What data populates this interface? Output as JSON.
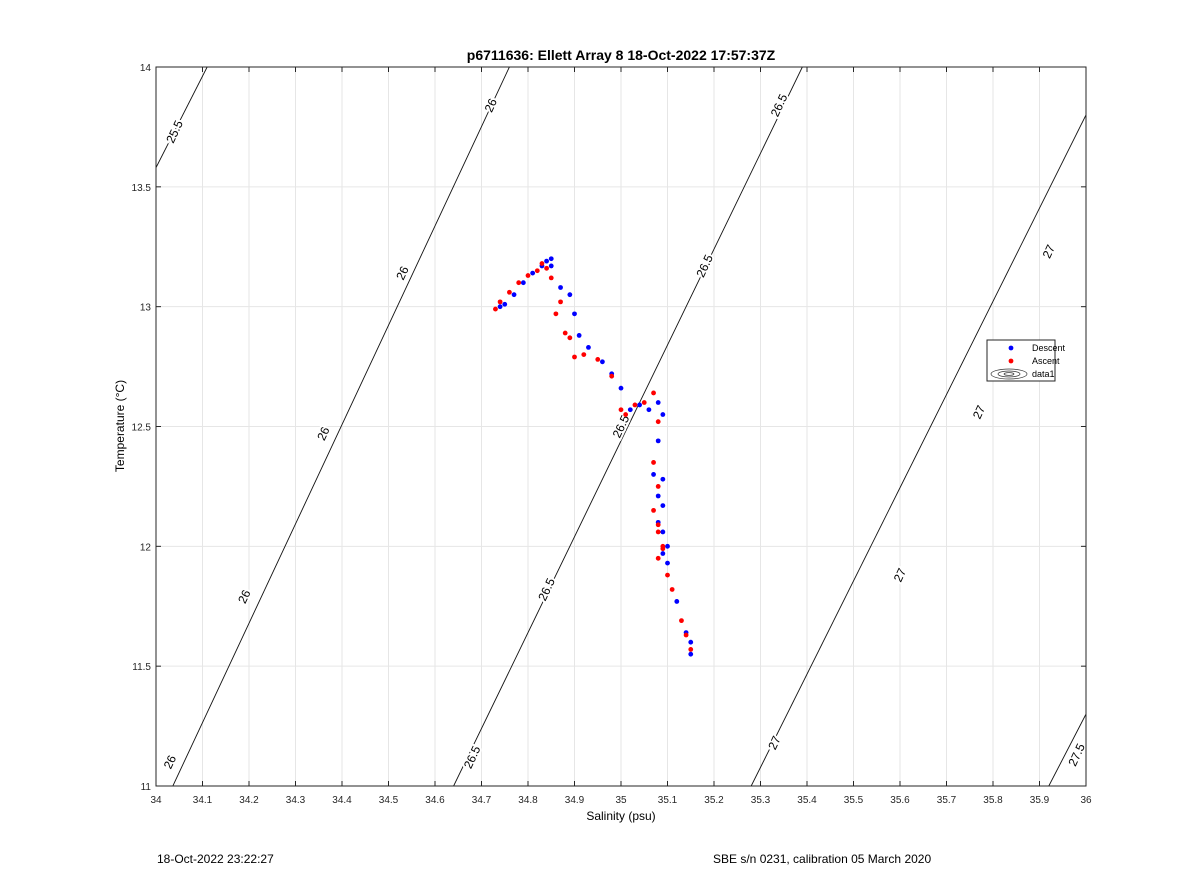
{
  "chart_data": {
    "type": "scatter",
    "title": "p6711636: Ellett Array 8 18-Oct-2022 17:57:37Z",
    "xlabel": "Salinity (psu)",
    "ylabel": "Temperature (°C)",
    "xlim": [
      34,
      36
    ],
    "ylim": [
      11,
      14
    ],
    "xticks": [
      "34",
      "34.1",
      "34.2",
      "34.3",
      "34.4",
      "34.5",
      "34.6",
      "34.7",
      "34.8",
      "34.9",
      "35",
      "35.1",
      "35.2",
      "35.3",
      "35.4",
      "35.5",
      "35.6",
      "35.7",
      "35.8",
      "35.9",
      "36"
    ],
    "yticks": [
      "11",
      "11.5",
      "12",
      "12.5",
      "13",
      "13.5",
      "14"
    ],
    "grid": true,
    "legend_position": "right",
    "legend": [
      "Descent",
      "Ascent",
      "data1"
    ],
    "series": [
      {
        "name": "Descent",
        "color": "#0000ff",
        "x": [
          34.74,
          34.75,
          34.77,
          34.79,
          34.81,
          34.83,
          34.84,
          34.85,
          34.85,
          34.87,
          34.89,
          34.9,
          34.91,
          34.93,
          34.96,
          34.98,
          35.0,
          35.02,
          35.04,
          35.06,
          35.08,
          35.09,
          35.08,
          35.07,
          35.09,
          35.08,
          35.09,
          35.08,
          35.09,
          35.1,
          35.09,
          35.1,
          35.12,
          35.14,
          35.15,
          35.15
        ],
        "y": [
          13.0,
          13.01,
          13.05,
          13.1,
          13.14,
          13.17,
          13.19,
          13.2,
          13.17,
          13.08,
          13.05,
          12.97,
          12.88,
          12.83,
          12.77,
          12.72,
          12.66,
          12.57,
          12.59,
          12.57,
          12.6,
          12.55,
          12.44,
          12.3,
          12.28,
          12.21,
          12.17,
          12.1,
          12.06,
          12.0,
          11.97,
          11.93,
          11.77,
          11.64,
          11.6,
          11.55
        ]
      },
      {
        "name": "Ascent",
        "color": "#ff0000",
        "x": [
          34.73,
          34.74,
          34.76,
          34.78,
          34.8,
          34.82,
          34.83,
          34.84,
          34.85,
          34.86,
          34.87,
          34.88,
          34.89,
          34.9,
          34.92,
          34.95,
          34.98,
          35.0,
          35.01,
          35.03,
          35.05,
          35.07,
          35.08,
          35.07,
          35.08,
          35.07,
          35.08,
          35.08,
          35.09,
          35.08,
          35.09,
          35.1,
          35.11,
          35.13,
          35.14,
          35.15
        ],
        "y": [
          12.99,
          13.02,
          13.06,
          13.1,
          13.13,
          13.15,
          13.18,
          13.16,
          13.12,
          12.97,
          13.02,
          12.89,
          12.87,
          12.79,
          12.8,
          12.78,
          12.71,
          12.57,
          12.55,
          12.59,
          12.6,
          12.64,
          12.52,
          12.35,
          12.25,
          12.15,
          12.09,
          12.06,
          11.99,
          11.95,
          12.0,
          11.88,
          11.82,
          11.69,
          11.63,
          11.57
        ]
      }
    ],
    "contours": [
      {
        "label": "25.5",
        "x0": 34.0,
        "y0": 13.58,
        "x1": 34.11,
        "y1": 14.0
      },
      {
        "label": "26",
        "x0": 34.0,
        "y0": 10.85,
        "x1": 34.76,
        "y1": 14.0
      },
      {
        "label": "26.5",
        "x0": 34.64,
        "y0": 11.0,
        "x1": 35.39,
        "y1": 14.0
      },
      {
        "label": "27",
        "x0": 35.28,
        "y0": 11.0,
        "x1": 36.0,
        "y1": 13.8
      },
      {
        "label": "27.5",
        "x0": 35.92,
        "y0": 11.0,
        "x1": 36.0,
        "y1": 11.3
      }
    ],
    "contour_labels": [
      {
        "text": "25.5",
        "x": 34.04,
        "y": 13.73
      },
      {
        "text": "26",
        "x": 34.72,
        "y": 13.84
      },
      {
        "text": "26",
        "x": 34.53,
        "y": 13.14
      },
      {
        "text": "26",
        "x": 34.36,
        "y": 12.47
      },
      {
        "text": "26",
        "x": 34.19,
        "y": 11.79
      },
      {
        "text": "26",
        "x": 34.03,
        "y": 11.1
      },
      {
        "text": "26.5",
        "x": 35.34,
        "y": 13.84
      },
      {
        "text": "26.5",
        "x": 35.18,
        "y": 13.17
      },
      {
        "text": "26.5",
        "x": 35.0,
        "y": 12.5
      },
      {
        "text": "26.5",
        "x": 34.84,
        "y": 11.82
      },
      {
        "text": "26.5",
        "x": 34.68,
        "y": 11.12
      },
      {
        "text": "27",
        "x": 35.92,
        "y": 13.23
      },
      {
        "text": "27",
        "x": 35.77,
        "y": 12.56
      },
      {
        "text": "27",
        "x": 35.6,
        "y": 11.88
      },
      {
        "text": "27",
        "x": 35.33,
        "y": 11.18
      },
      {
        "text": "27.5",
        "x": 35.98,
        "y": 11.13
      }
    ]
  },
  "footer": {
    "left": "18-Oct-2022 23:22:27",
    "right": "SBE s/n 0231, calibration 05 March 2020"
  }
}
